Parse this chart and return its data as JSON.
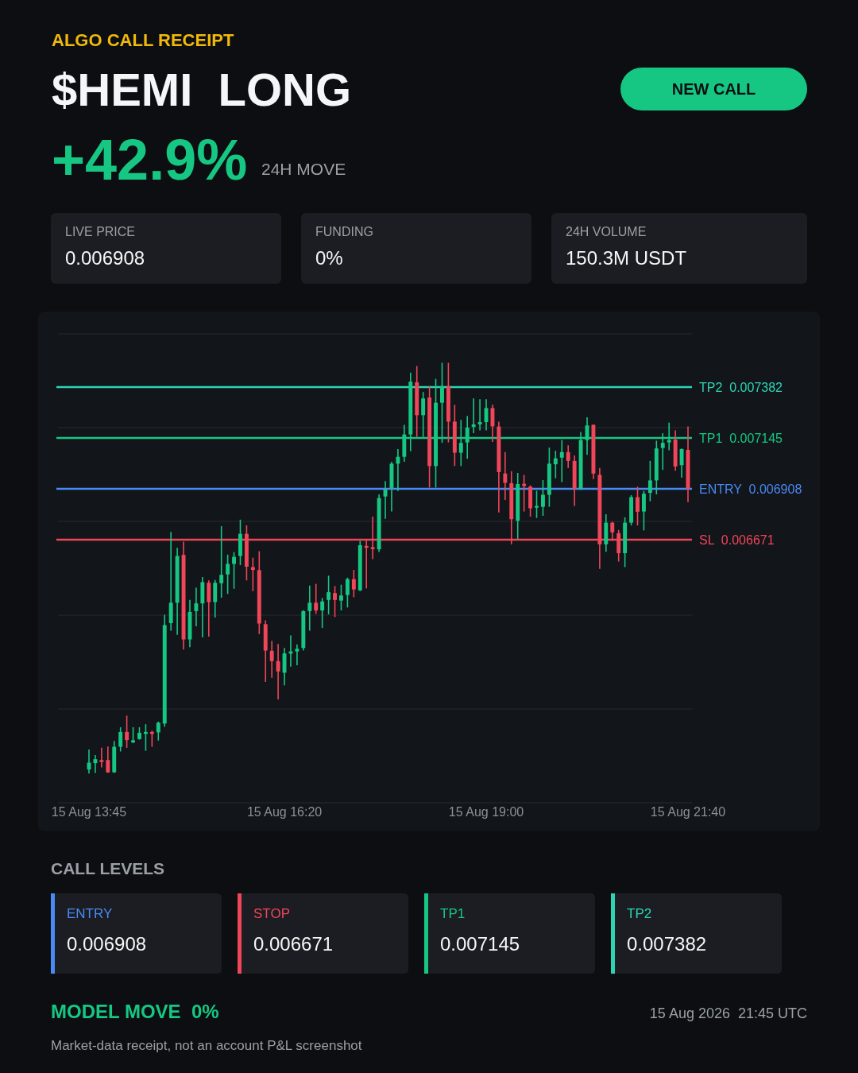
{
  "chart_data": [
    {
      "type": "other",
      "subtitle": "ALGO CALL RECEIPT",
      "title": "$HEMI  LONG",
      "annotations": [
        "NEW CALL",
        "+42.9%",
        "24H MOVE",
        "LIVE PRICE",
        "0.006908",
        "FUNDING",
        "0%",
        "24H VOLUME",
        "150.3M USDT"
      ]
    },
    {
      "type": "candlestick",
      "categories": [
        "15 Aug 13:45",
        null,
        null,
        null,
        null,
        null,
        null,
        null,
        null,
        null,
        null,
        null,
        null,
        null,
        null,
        null,
        null,
        null,
        null,
        null,
        null,
        null,
        null,
        null,
        null,
        null,
        null,
        null,
        null,
        null,
        null,
        "15 Aug 16:20",
        null,
        null,
        null,
        null,
        null,
        null,
        null,
        null,
        null,
        null,
        null,
        null,
        null,
        null,
        null,
        null,
        null,
        null,
        null,
        null,
        null,
        null,
        null,
        null,
        null,
        null,
        null,
        null,
        null,
        null,
        null,
        "15 Aug 19:00",
        null,
        null,
        null,
        null,
        null,
        null,
        null,
        null,
        null,
        null,
        null,
        null,
        null,
        null,
        null,
        null,
        null,
        null,
        null,
        null,
        null,
        null,
        null,
        null,
        null,
        null,
        null,
        null,
        null,
        null,
        null,
        "15 Aug 21:40"
      ],
      "ohlc": [
        [
          0.0056,
          0.005693,
          0.005581,
          0.005632
        ],
        [
          0.00563,
          0.005667,
          0.005584,
          0.005648
        ],
        [
          0.005644,
          0.005701,
          0.00561,
          0.005635
        ],
        [
          0.005644,
          0.005707,
          0.005584,
          0.005587
        ],
        [
          0.005587,
          0.005733,
          0.005584,
          0.005706
        ],
        [
          0.005706,
          0.005797,
          0.005684,
          0.005775
        ],
        [
          0.005775,
          0.005851,
          0.005701,
          0.005737
        ],
        [
          0.005726,
          0.005797,
          0.005723,
          0.005736
        ],
        [
          0.005742,
          0.005797,
          0.005739,
          0.005771
        ],
        [
          0.005766,
          0.005811,
          0.005687,
          0.005775
        ],
        [
          0.005775,
          0.005781,
          0.005706,
          0.005766
        ],
        [
          0.005773,
          0.005823,
          0.005735,
          0.005818
        ],
        [
          0.005814,
          0.006321,
          0.005799,
          0.006273
        ],
        [
          0.006282,
          0.006707,
          0.006247,
          0.006377
        ],
        [
          0.006377,
          0.006633,
          0.006227,
          0.006595
        ],
        [
          0.0066,
          0.006662,
          0.006159,
          0.006206
        ],
        [
          0.006206,
          0.00639,
          0.00617,
          0.006334
        ],
        [
          0.006338,
          0.006448,
          0.006267,
          0.006374
        ],
        [
          0.006374,
          0.006497,
          0.006215,
          0.006473
        ],
        [
          0.00647,
          0.006481,
          0.006219,
          0.00638
        ],
        [
          0.00638,
          0.006483,
          0.006308,
          0.00647
        ],
        [
          0.006468,
          0.006734,
          0.0064,
          0.006507
        ],
        [
          0.006509,
          0.006601,
          0.006418,
          0.006558
        ],
        [
          0.006558,
          0.006613,
          0.006442,
          0.006591
        ],
        [
          0.006595,
          0.006764,
          0.006552,
          0.006698
        ],
        [
          0.006698,
          0.006738,
          0.006481,
          0.006545
        ],
        [
          0.006543,
          0.006587,
          0.006431,
          0.00653
        ],
        [
          0.006529,
          0.006617,
          0.006231,
          0.00628
        ],
        [
          0.006277,
          0.006295,
          0.006008,
          0.006154
        ],
        [
          0.006153,
          0.0062,
          0.006027,
          0.006105
        ],
        [
          0.006105,
          0.006185,
          0.005926,
          0.006057
        ],
        [
          0.006051,
          0.006166,
          0.005992,
          0.006141
        ],
        [
          0.00614,
          0.006225,
          0.006079,
          0.00615
        ],
        [
          0.00615,
          0.006183,
          0.006086,
          0.006163
        ],
        [
          0.006166,
          0.006342,
          0.006154,
          0.006338
        ],
        [
          0.006338,
          0.006457,
          0.006247,
          0.006377
        ],
        [
          0.006377,
          0.006465,
          0.006325,
          0.006341
        ],
        [
          0.006341,
          0.006399,
          0.00626,
          0.006383
        ],
        [
          0.00639,
          0.006503,
          0.006323,
          0.006426
        ],
        [
          0.006422,
          0.006455,
          0.00631,
          0.00639
        ],
        [
          0.006387,
          0.006461,
          0.006341,
          0.006411
        ],
        [
          0.006413,
          0.006494,
          0.006355,
          0.006487
        ],
        [
          0.006487,
          0.00653,
          0.006403,
          0.006439
        ],
        [
          0.006435,
          0.006665,
          0.006431,
          0.006645
        ],
        [
          0.006642,
          0.006667,
          0.006444,
          0.006633
        ],
        [
          0.006636,
          0.006778,
          0.00658,
          0.006627
        ],
        [
          0.006626,
          0.006882,
          0.006613,
          0.006865
        ],
        [
          0.006872,
          0.006944,
          0.006768,
          0.006904
        ],
        [
          0.006912,
          0.007034,
          0.006802,
          0.007025
        ],
        [
          0.007025,
          0.007093,
          0.006898,
          0.007057
        ],
        [
          0.007057,
          0.007206,
          0.007034,
          0.007161
        ],
        [
          0.007161,
          0.007449,
          0.007083,
          0.007407
        ],
        [
          0.007404,
          0.00748,
          0.00715,
          0.007251
        ],
        [
          0.007251,
          0.007359,
          0.00715,
          0.007329
        ],
        [
          0.007333,
          0.007387,
          0.006914,
          0.007014
        ],
        [
          0.007014,
          0.00742,
          0.006914,
          0.007309
        ],
        [
          0.007309,
          0.007495,
          0.007122,
          0.007387
        ],
        [
          0.007387,
          0.007495,
          0.007124,
          0.007221
        ],
        [
          0.007221,
          0.007299,
          0.007014,
          0.007076
        ],
        [
          0.007076,
          0.007229,
          0.007014,
          0.007122
        ],
        [
          0.007124,
          0.007247,
          0.007048,
          0.007193
        ],
        [
          0.007196,
          0.007329,
          0.007167,
          0.007208
        ],
        [
          0.007208,
          0.007325,
          0.00718,
          0.007219
        ],
        [
          0.007219,
          0.007325,
          0.00718,
          0.007284
        ],
        [
          0.007284,
          0.0073,
          0.007126,
          0.007199
        ],
        [
          0.007198,
          0.007221,
          0.006798,
          0.006986
        ],
        [
          0.006979,
          0.007079,
          0.006856,
          0.006936
        ],
        [
          0.006934,
          0.00699,
          0.006649,
          0.006766
        ],
        [
          0.006759,
          0.006982,
          0.006675,
          0.00693
        ],
        [
          0.006931,
          0.006973,
          0.006802,
          0.006921
        ],
        [
          0.006918,
          0.006924,
          0.006778,
          0.006817
        ],
        [
          0.00682,
          0.006899,
          0.006772,
          0.006828
        ],
        [
          0.006824,
          0.006949,
          0.006782,
          0.00688
        ],
        [
          0.00688,
          0.0071,
          0.006824,
          0.007025
        ],
        [
          0.007022,
          0.007085,
          0.006957,
          0.00705
        ],
        [
          0.007053,
          0.007135,
          0.006939,
          0.007079
        ],
        [
          0.007079,
          0.007111,
          0.007005,
          0.007038
        ],
        [
          0.007038,
          0.007063,
          0.006828,
          0.006908
        ],
        [
          0.006908,
          0.007173,
          0.006902,
          0.007135
        ],
        [
          0.007135,
          0.007241,
          0.007066,
          0.007203
        ],
        [
          0.007206,
          0.007208,
          0.006953,
          0.006979
        ],
        [
          0.006973,
          0.007005,
          0.006535,
          0.006649
        ],
        [
          0.006649,
          0.006789,
          0.006614,
          0.00675
        ],
        [
          0.00675,
          0.006755,
          0.006665,
          0.006705
        ],
        [
          0.006701,
          0.006716,
          0.006569,
          0.006608
        ],
        [
          0.006608,
          0.006775,
          0.006543,
          0.00675
        ],
        [
          0.00675,
          0.006878,
          0.006737,
          0.006869
        ],
        [
          0.006869,
          0.006918,
          0.006737,
          0.006801
        ],
        [
          0.006802,
          0.006898,
          0.006714,
          0.006885
        ],
        [
          0.006889,
          0.007038,
          0.00685,
          0.006947
        ],
        [
          0.006947,
          0.007132,
          0.006882,
          0.007096
        ],
        [
          0.007098,
          0.007167,
          0.006996,
          0.007122
        ],
        [
          0.007124,
          0.007216,
          0.007087,
          0.007135
        ],
        [
          0.007137,
          0.00718,
          0.006992,
          0.007012
        ],
        [
          0.007018,
          0.007096,
          0.00696,
          0.007093
        ],
        [
          0.007089,
          0.007199,
          0.006846,
          0.006908
        ]
      ],
      "colors": [
        "#16c784",
        "#16c784",
        "#f0465a",
        "#f0465a",
        "#16c784",
        "#16c784",
        "#f0465a",
        "#16c784",
        "#16c784",
        "#16c784",
        "#f0465a",
        "#16c784",
        "#16c784",
        "#16c784",
        "#16c784",
        "#f0465a",
        "#16c784",
        "#16c784",
        "#16c784",
        "#f0465a",
        "#16c784",
        "#16c784",
        "#16c784",
        "#16c784",
        "#16c784",
        "#f0465a",
        "#f0465a",
        "#f0465a",
        "#f0465a",
        "#f0465a",
        "#f0465a",
        "#16c784",
        "#16c784",
        "#16c784",
        "#16c784",
        "#16c784",
        "#f0465a",
        "#16c784",
        "#16c784",
        "#f0465a",
        "#16c784",
        "#16c784",
        "#f0465a",
        "#16c784",
        "#f0465a",
        "#f0465a",
        "#16c784",
        "#16c784",
        "#16c784",
        "#16c784",
        "#16c784",
        "#16c784",
        "#f0465a",
        "#16c784",
        "#f0465a",
        "#16c784",
        "#16c784",
        "#f0465a",
        "#f0465a",
        "#16c784",
        "#16c784",
        "#16c784",
        "#16c784",
        "#16c784",
        "#f0465a",
        "#f0465a",
        "#f0465a",
        "#f0465a",
        "#16c784",
        "#f0465a",
        "#f0465a",
        "#16c784",
        "#16c784",
        "#16c784",
        "#16c784",
        "#16c784",
        "#f0465a",
        "#f0465a",
        "#16c784",
        "#16c784",
        "#f0465a",
        "#f0465a",
        "#16c784",
        "#f0465a",
        "#f0465a",
        "#16c784",
        "#16c784",
        "#f0465a",
        "#16c784",
        "#16c784",
        "#16c784",
        "#16c784",
        "#16c784",
        "#f0465a",
        "#16c784",
        "#f0465a"
      ],
      "ylim": [
        0.005445,
        0.00763
      ],
      "yticks": [
        {
          "value": 0.005445,
          "label": null
        },
        {
          "value": 0.005882,
          "label": null
        },
        {
          "value": 0.006319,
          "label": null
        },
        {
          "value": 0.006756,
          "label": null
        },
        {
          "value": 0.007193,
          "label": null
        },
        {
          "value": 0.00763,
          "label": null
        }
      ],
      "grid": "y",
      "tick_labels": "x",
      "ref_lines": [
        {
          "axis": "y",
          "value": 0.007382,
          "label": "TP2  0.007382",
          "color": "#2dd4b4"
        },
        {
          "axis": "y",
          "value": 0.007145,
          "label": "TP1  0.007145",
          "color": "#16c784"
        },
        {
          "axis": "y",
          "value": 0.006908,
          "label": "ENTRY  0.006908",
          "color": "#4a8af4"
        },
        {
          "axis": "y",
          "value": 0.006671,
          "label": "SL  0.006671",
          "color": "#f0465a"
        }
      ]
    },
    {
      "type": "other",
      "title": "CALL LEVELS",
      "categories": [
        "ENTRY",
        "STOP",
        "TP1",
        "TP2"
      ],
      "values": [
        0.006908,
        0.006671,
        0.007145,
        0.007382
      ],
      "data_labels": true,
      "annotations": [
        "MODEL MOVE  0%",
        "15 Aug 2026  21:45 UTC",
        "Market-data receipt, not an account P&L screenshot"
      ]
    }
  ]
}
